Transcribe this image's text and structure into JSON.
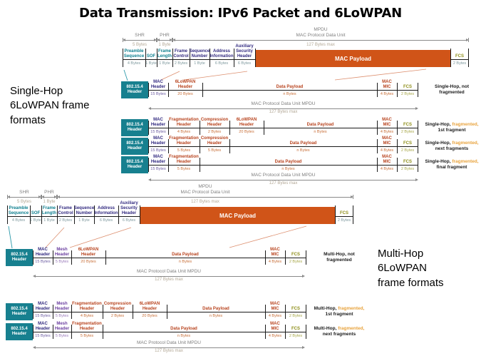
{
  "title": "Data Transmission: IPv6 Packet and 6LoWPAN",
  "section_labels": {
    "single_hop": "Single-Hop\n6LoWPAN frame\nformats",
    "multi_hop": "Multi-Hop\n6LoWPAN\nframe formats"
  },
  "colors": {
    "teal_box": "#17808f",
    "teal_label": "#0e7f8f",
    "navy_label": "#322a80",
    "navy_bytes": "#6a5aa0",
    "purple_label": "#6b3fa0",
    "purple_bytes": "#9a7aba",
    "orange_label": "#b8441f",
    "orange_bytes": "#c8703a",
    "olive_label": "#8f8f1a",
    "olive_bytes": "#a8a84a",
    "payload_bg": "#d05418",
    "gray_label": "#7f7f7f",
    "gray_bytes": "#b3a896",
    "arrow": "#8a8a8a",
    "line": "#1a1a1a",
    "fragmented_accent": "#e8a33d",
    "field_bytes": "#7e999e",
    "connector_teal": "#2e9aab",
    "connector_salmon": "#dd9070"
  },
  "phy_diagram": {
    "spans": [
      {
        "kind": "shr-span",
        "label": "SHR",
        "bytes": "5 Bytes"
      },
      {
        "kind": "phr-span",
        "label": "PHR",
        "bytes": "1 Byte"
      },
      {
        "kind": "mpdu-span",
        "label": "MPDU\nMAC Protocol Data Unit",
        "bytes": "127 Bytes max"
      }
    ],
    "fields": [
      {
        "kind": "preamble-sequence",
        "label": "Preamble\nSequence",
        "bytes": "4 Bytes",
        "color": "teal"
      },
      {
        "kind": "sof",
        "label": "SOF",
        "bytes": "1 Byte",
        "color": "teal"
      },
      {
        "kind": "frame-length",
        "label": "Frame\nLength",
        "bytes": "1 Byte",
        "color": "teal"
      },
      {
        "kind": "frame-control",
        "label": "Frame\nControl",
        "bytes": "2 Bytes",
        "color": "navy"
      },
      {
        "kind": "sequence-number",
        "label": "Sequence\nNumber",
        "bytes": "1 Byte",
        "color": "navy"
      },
      {
        "kind": "address-information",
        "label": "Address\nInformation",
        "bytes": "6 Bytes",
        "color": "navy"
      },
      {
        "kind": "auxiliary-security-header",
        "label": "Auxiliary\nSecurity\nHeader",
        "bytes": "6 Bytes",
        "color": "navy"
      }
    ],
    "payload_label": "MAC Payload",
    "fcs": {
      "label": "FCS",
      "bytes": "2 Bytes"
    }
  },
  "mpdu_arrow": {
    "label": "MAC Protocol Data Unit MPDU",
    "bytes": "127 Bytes max"
  },
  "phy_header_label": "802.15.4\nHeader",
  "frame_rows": [
    {
      "id": "sh-1",
      "cells": [
        {
          "kind": "mac",
          "label": "MAC\nHeader",
          "bytes": "15 Bytes",
          "color": "navy"
        },
        {
          "kind": "lowpan",
          "label": "6LoWPAN\nHeader",
          "bytes": "20 Bytes",
          "color": "orange"
        },
        {
          "kind": "payload",
          "label": "Data Payload",
          "bytes": "n Bytes",
          "color": "orange"
        },
        {
          "kind": "mic",
          "label": "MAC\nMIC",
          "bytes": "4 Bytes",
          "color": "orange"
        },
        {
          "kind": "fcs",
          "label": "FCS",
          "bytes": "2 Bytes",
          "color": "olive"
        }
      ],
      "caption": [
        {
          "text": "Single-Hop, not"
        },
        {
          "text": "fragmented",
          "newline": true
        }
      ]
    },
    {
      "id": "sh-2",
      "cells": [
        {
          "kind": "mac",
          "label": "MAC\nHeader",
          "bytes": "15 Bytes",
          "color": "navy"
        },
        {
          "kind": "frag",
          "label": "Fragmentation\nHeader",
          "bytes": "4 Bytes",
          "color": "orange"
        },
        {
          "kind": "comp",
          "label": "Compression\nHeader",
          "bytes": "2 Bytes",
          "color": "orange"
        },
        {
          "kind": "lowpan",
          "label": "6LoWPAN\nHeader",
          "bytes": "20 Bytes",
          "color": "orange"
        },
        {
          "kind": "payload",
          "label": "Data Payload",
          "bytes": "n Bytes",
          "color": "orange"
        },
        {
          "kind": "mic",
          "label": "MAC\nMIC",
          "bytes": "4 Bytes",
          "color": "orange"
        },
        {
          "kind": "fcs",
          "label": "FCS",
          "bytes": "2 Bytes",
          "color": "olive"
        }
      ],
      "caption": [
        {
          "text": "Single-Hop, "
        },
        {
          "text": "fragmented,",
          "accent": true
        },
        {
          "text": "1st fragment",
          "newline": true
        }
      ]
    },
    {
      "id": "sh-3",
      "cells": [
        {
          "kind": "mac",
          "label": "MAC\nHeader",
          "bytes": "15 Bytes",
          "color": "navy"
        },
        {
          "kind": "frag",
          "label": "Fragmentation\nHeader",
          "bytes": "5 Bytes",
          "color": "orange"
        },
        {
          "kind": "comp",
          "label": "Compression\nHeader",
          "bytes": "5 Bytes",
          "color": "orange"
        },
        {
          "kind": "payload",
          "label": "Data Payload",
          "bytes": "n Bytes",
          "color": "orange"
        },
        {
          "kind": "mic",
          "label": "MAC\nMIC",
          "bytes": "4 Bytes",
          "color": "orange"
        },
        {
          "kind": "fcs",
          "label": "FCS",
          "bytes": "2 Bytes",
          "color": "olive"
        }
      ],
      "caption": [
        {
          "text": "Single-Hop, "
        },
        {
          "text": "fragmented,",
          "accent": true
        },
        {
          "text": "next fragments",
          "newline": true
        }
      ]
    },
    {
      "id": "sh-4",
      "cells": [
        {
          "kind": "mac",
          "label": "MAC\nHeader",
          "bytes": "15 Bytes",
          "color": "navy"
        },
        {
          "kind": "frag",
          "label": "Fragmentation\nHeader",
          "bytes": "5 Bytes",
          "color": "orange"
        },
        {
          "kind": "payload",
          "label": "Data Payload",
          "bytes": "n Bytes",
          "color": "orange"
        },
        {
          "kind": "mic",
          "label": "MAC\nMIC",
          "bytes": "4 Bytes",
          "color": "orange"
        },
        {
          "kind": "fcs",
          "label": "FCS",
          "bytes": "2 Bytes",
          "color": "olive"
        }
      ],
      "caption": [
        {
          "text": "Single-Hop, "
        },
        {
          "text": "fragmented,",
          "accent": true
        },
        {
          "text": "final fragment",
          "newline": true
        }
      ]
    },
    {
      "id": "mh-1",
      "cells": [
        {
          "kind": "mac",
          "label": "MAC\nHeader",
          "bytes": "15 Bytes",
          "color": "navy"
        },
        {
          "kind": "mesh",
          "label": "Mesh\nHeader",
          "bytes": "5 Bytes",
          "color": "purple"
        },
        {
          "kind": "lowpan",
          "label": "6LoWPAN\nHeader",
          "bytes": "20 Bytes",
          "color": "orange"
        },
        {
          "kind": "payload",
          "label": "Data Payload",
          "bytes": "n Bytes",
          "color": "orange"
        },
        {
          "kind": "mic",
          "label": "MAC\nMIC",
          "bytes": "4 Bytes",
          "color": "orange"
        },
        {
          "kind": "fcs",
          "label": "FCS",
          "bytes": "2 Bytes",
          "color": "olive"
        }
      ],
      "caption": [
        {
          "text": "Multi-Hop, not"
        },
        {
          "text": "fragmented",
          "newline": true
        }
      ]
    },
    {
      "id": "mh-2",
      "cells": [
        {
          "kind": "mac",
          "label": "MAC\nHeader",
          "bytes": "15 Bytes",
          "color": "navy"
        },
        {
          "kind": "mesh",
          "label": "Mesh\nHeader",
          "bytes": "5 Bytes",
          "color": "purple"
        },
        {
          "kind": "frag",
          "label": "Fragmentation\nHeader",
          "bytes": "4 Bytes",
          "color": "orange"
        },
        {
          "kind": "comp",
          "label": "Compression\nHeader",
          "bytes": "2 Bytes",
          "color": "orange"
        },
        {
          "kind": "lowpan",
          "label": "6LoWPAN\nHeader",
          "bytes": "20 Bytes",
          "color": "orange"
        },
        {
          "kind": "payload",
          "label": "Data Payload",
          "bytes": "n Bytes",
          "color": "orange"
        },
        {
          "kind": "mic",
          "label": "MAC\nMIC",
          "bytes": "4 Bytes",
          "color": "orange"
        },
        {
          "kind": "fcs",
          "label": "FCS",
          "bytes": "2 Bytes",
          "color": "olive"
        }
      ],
      "caption": [
        {
          "text": "Multi-Hop, "
        },
        {
          "text": "fragmented,",
          "accent": true
        },
        {
          "text": "1st fragment",
          "newline": true
        }
      ]
    },
    {
      "id": "mh-3",
      "cells": [
        {
          "kind": "mac",
          "label": "MAC\nHeader",
          "bytes": "15 Bytes",
          "color": "navy"
        },
        {
          "kind": "mesh",
          "label": "Mesh\nHeader",
          "bytes": "5 Bytes",
          "color": "purple"
        },
        {
          "kind": "frag",
          "label": "Fragmentation\nHeader",
          "bytes": "5 Bytes",
          "color": "orange"
        },
        {
          "kind": "payload",
          "label": "Data Payload",
          "bytes": "n Bytes",
          "color": "orange"
        },
        {
          "kind": "mic",
          "label": "MAC\nMIC",
          "bytes": "4 Bytes",
          "color": "orange"
        },
        {
          "kind": "fcs",
          "label": "FCS",
          "bytes": "2 Bytes",
          "color": "olive"
        }
      ],
      "caption": [
        {
          "text": "Multi-Hop, "
        },
        {
          "text": "fragmented,",
          "accent": true
        },
        {
          "text": "next fragments",
          "newline": true
        }
      ]
    }
  ]
}
